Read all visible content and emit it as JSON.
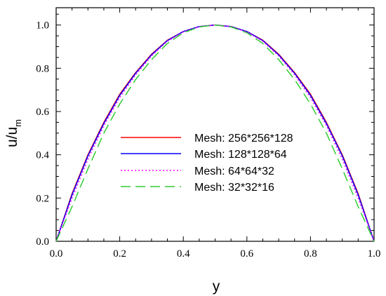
{
  "chart_data": {
    "type": "line",
    "title": "",
    "xlabel": "y",
    "ylabel": "u/u",
    "ylabel_subscript": "m",
    "xlim": [
      0.0,
      1.0
    ],
    "ylim": [
      0.0,
      1.08
    ],
    "x_ticks": [
      "0.0",
      "0.2",
      "0.4",
      "0.6",
      "0.8",
      "1.0"
    ],
    "y_ticks": [
      "0.0",
      "0.2",
      "0.4",
      "0.6",
      "0.8",
      "1.0"
    ],
    "grid": false,
    "legend_position": "center",
    "x": [
      0.0,
      0.05,
      0.1,
      0.15,
      0.2,
      0.25,
      0.3,
      0.35,
      0.4,
      0.45,
      0.5,
      0.55,
      0.6,
      0.65,
      0.7,
      0.75,
      0.8,
      0.85,
      0.9,
      0.95,
      1.0
    ],
    "series": [
      {
        "name": "Mesh: 256*256*128",
        "color": "#ff0000",
        "dash": "solid",
        "values": [
          0.0,
          0.22,
          0.4,
          0.55,
          0.68,
          0.78,
          0.865,
          0.93,
          0.97,
          0.993,
          1.0,
          0.993,
          0.97,
          0.93,
          0.865,
          0.78,
          0.68,
          0.55,
          0.4,
          0.22,
          0.0
        ]
      },
      {
        "name": "Mesh: 128*128*64",
        "color": "#0000ff",
        "dash": "solid",
        "values": [
          0.0,
          0.215,
          0.395,
          0.545,
          0.675,
          0.777,
          0.862,
          0.928,
          0.97,
          0.993,
          1.0,
          0.993,
          0.97,
          0.928,
          0.862,
          0.777,
          0.675,
          0.545,
          0.395,
          0.215,
          0.0
        ]
      },
      {
        "name": "Mesh: 64*64*32",
        "color": "#ff00ff",
        "dash": "dotted",
        "values": [
          0.0,
          0.2,
          0.38,
          0.535,
          0.665,
          0.77,
          0.857,
          0.925,
          0.968,
          0.992,
          1.0,
          0.992,
          0.968,
          0.925,
          0.857,
          0.77,
          0.665,
          0.535,
          0.38,
          0.2,
          0.0
        ]
      },
      {
        "name": "Mesh: 32*32*16",
        "color": "#33cc33",
        "dash": "dashed",
        "values": [
          0.0,
          0.16,
          0.335,
          0.5,
          0.635,
          0.748,
          0.84,
          0.915,
          0.964,
          0.991,
          1.0,
          0.991,
          0.964,
          0.915,
          0.84,
          0.748,
          0.635,
          0.5,
          0.335,
          0.16,
          0.0
        ]
      }
    ]
  }
}
